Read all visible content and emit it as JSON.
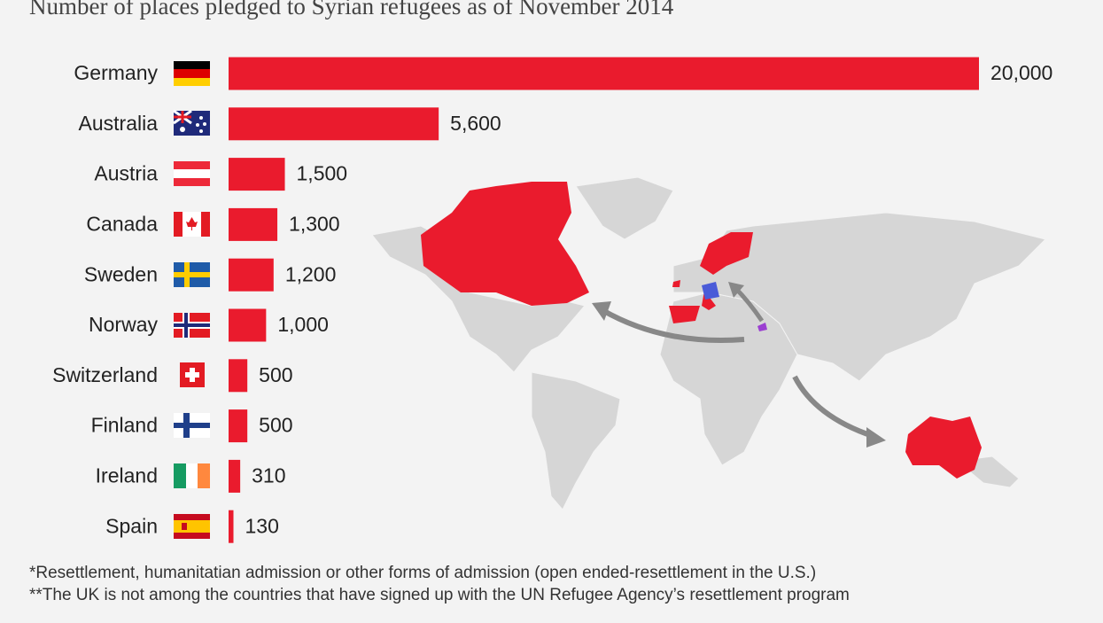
{
  "chart_data": {
    "type": "bar",
    "title": "Number of places pledged to Syrian refugees as of November 2014",
    "categories": [
      "Germany",
      "Australia",
      "Austria",
      "Canada",
      "Sweden",
      "Norway",
      "Switzerland",
      "Finland",
      "Ireland",
      "Spain"
    ],
    "values": [
      20000,
      5600,
      1500,
      1300,
      1200,
      1000,
      500,
      500,
      310,
      130
    ],
    "value_labels": [
      "20,000",
      "5,600",
      "1,500",
      "1,300",
      "1,200",
      "1,000",
      "500",
      "500",
      "310",
      "130"
    ],
    "color": "#ea1b2d",
    "notes": [
      "*Resettlement, humanitatian admission or other forms of admission (open ended-resettlement in the U.S.)",
      "**The UK is not among the countries that have signed up with the UN Refugee Agency’s resettlement program"
    ]
  }
}
